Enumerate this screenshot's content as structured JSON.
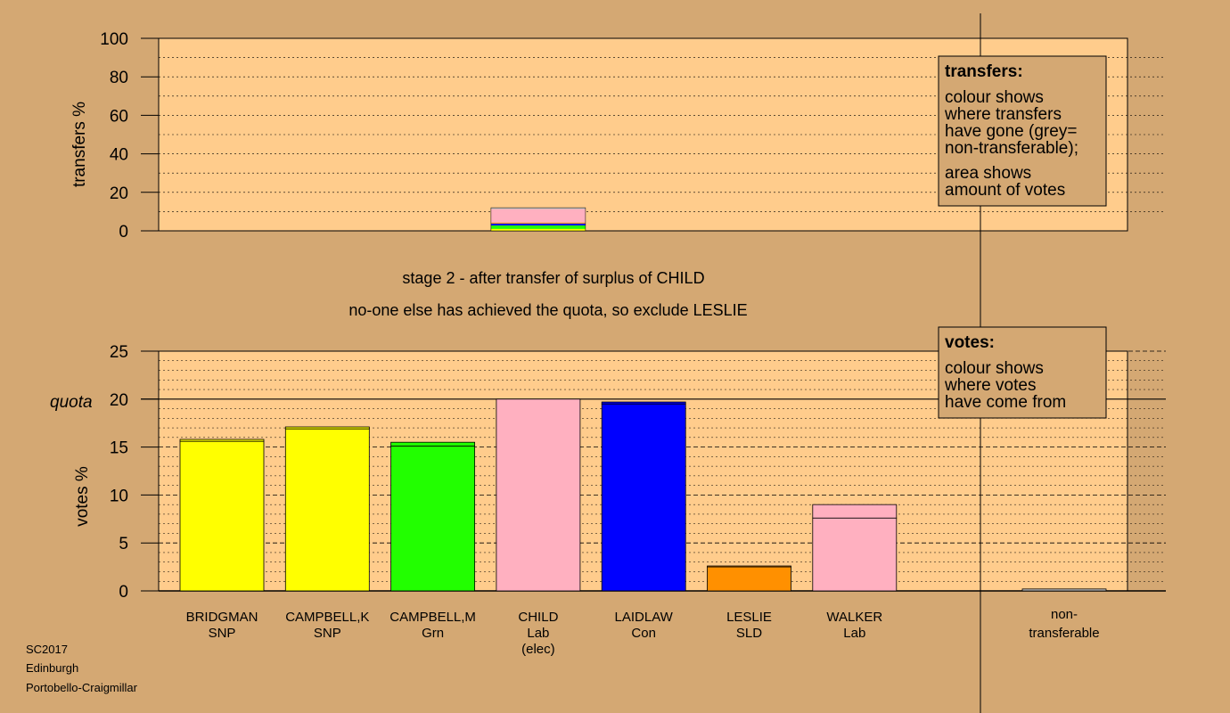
{
  "chart_data": {
    "type": "bar",
    "top": {
      "ylabel": "transfers %",
      "ylim": [
        0,
        100
      ],
      "yticks": [
        "0",
        "20",
        "40",
        "60",
        "80",
        "100"
      ],
      "transfer_bar": {
        "source_index": 3,
        "segments": [
          {
            "value": 1,
            "color": "#ffff00"
          },
          {
            "value": 1.8,
            "color": "#22ff00"
          },
          {
            "value": 1,
            "color": "#0000ff"
          },
          {
            "value": 0.5,
            "color": "#ff9000"
          },
          {
            "value": 7,
            "color": "#ffb0c0"
          },
          {
            "value": 0.7,
            "color": "#c0c0c0"
          }
        ]
      },
      "legend": {
        "title": "transfers:",
        "lines1": [
          "colour shows",
          "where transfers",
          "have gone (grey=",
          "non-transferable);"
        ],
        "lines2": [
          "area shows",
          "amount of votes"
        ]
      }
    },
    "titles": [
      "stage 2 - after transfer of surplus of CHILD",
      "no-one else has achieved the quota, so exclude LESLIE"
    ],
    "bottom": {
      "ylabel": "votes %",
      "quota_label": "quota",
      "quota": 20,
      "ylim": [
        0,
        25
      ],
      "yticks": [
        "0",
        "5",
        "10",
        "15",
        "20",
        "25"
      ],
      "candidates": [
        {
          "name": "BRIDGMAN",
          "party": "SNP",
          "extra": "",
          "color": "#ffff00",
          "base": 15.6,
          "transfer": 0.2
        },
        {
          "name": "CAMPBELL,K",
          "party": "SNP",
          "extra": "",
          "color": "#ffff00",
          "base": 16.9,
          "transfer": 0.2
        },
        {
          "name": "CAMPBELL,M",
          "party": "Grn",
          "extra": "",
          "color": "#22ff00",
          "base": 15.1,
          "transfer": 0.4
        },
        {
          "name": "CHILD",
          "party": "Lab",
          "extra": "(elec)",
          "color": "#ffb0c0",
          "base": 20.0,
          "transfer": 0
        },
        {
          "name": "LAIDLAW",
          "party": "Con",
          "extra": "",
          "color": "#0000ff",
          "base": 19.5,
          "transfer": 0.2
        },
        {
          "name": "LESLIE",
          "party": "SLD",
          "extra": "",
          "color": "#ff9000",
          "base": 2.5,
          "transfer": 0.1
        },
        {
          "name": "WALKER",
          "party": "Lab",
          "extra": "",
          "color": "#ffb0c0",
          "base": 7.6,
          "transfer": 1.4
        }
      ],
      "nontransferable": {
        "line1": "non-",
        "line2": "transferable",
        "value": 0.2
      },
      "legend": {
        "title": "votes:",
        "lines": [
          "colour shows",
          "where votes",
          "have come from"
        ]
      }
    },
    "footer": [
      "SC2017",
      "Edinburgh",
      "Portobello-Craigmillar"
    ],
    "colors": {
      "background": "#d4a873",
      "plot_area": "#ffcc8c",
      "nontransferable": "#c0c0c0"
    }
  }
}
